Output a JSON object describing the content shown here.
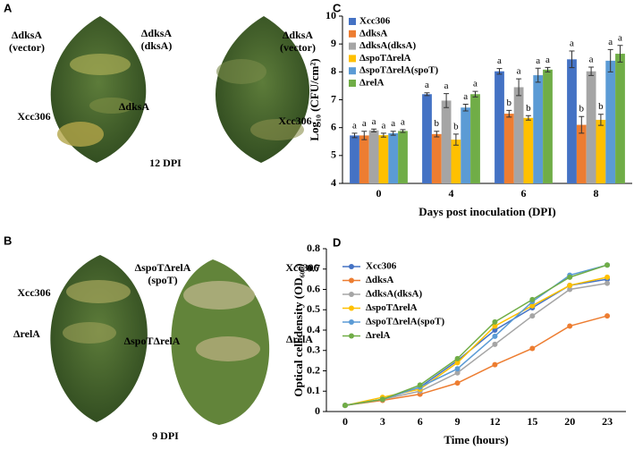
{
  "figure": {
    "panel_a": {
      "letter": "A",
      "caption": "12 DPI",
      "labels": [
        [
          "ΔdksA",
          "(vector)"
        ],
        [
          "ΔdksA",
          "(dksA)"
        ],
        [
          "ΔdksA"
        ],
        [
          "Xcc306"
        ],
        [
          "ΔdksA",
          "(vector)"
        ],
        [
          "Xcc306"
        ]
      ]
    },
    "panel_b": {
      "letter": "B",
      "caption": "9 DPI",
      "labels": [
        [
          "Xcc306"
        ],
        [
          "ΔspoTΔrelA",
          "(spoT)"
        ],
        [
          "Xcc306"
        ],
        [
          "ΔrelA"
        ],
        [
          "ΔspoTΔrelA"
        ],
        [
          "ΔrelA"
        ]
      ]
    },
    "panel_c": {
      "letter": "C"
    },
    "panel_d": {
      "letter": "D"
    }
  },
  "chart_data": [
    {
      "type": "bar",
      "x_label": "Days post inoculation (DPI)",
      "y_label": "Log₁₀ (CFU/cm²)",
      "categories": [
        "0",
        "4",
        "6",
        "8"
      ],
      "ylim": [
        4,
        10
      ],
      "yticks": [
        4,
        5,
        6,
        7,
        8,
        9,
        10
      ],
      "series": [
        {
          "name": "Xcc306",
          "color": "#4472c4",
          "values": [
            5.72,
            7.2,
            8.02,
            8.45
          ],
          "errors": [
            0.08,
            0.05,
            0.1,
            0.3
          ],
          "letters": [
            "a",
            "a",
            "a",
            "a"
          ]
        },
        {
          "name": "ΔdksA",
          "color": "#ed7d31",
          "values": [
            5.72,
            5.77,
            6.5,
            6.1
          ],
          "errors": [
            0.15,
            0.1,
            0.12,
            0.3
          ],
          "letters": [
            "a",
            "b",
            "b",
            "b"
          ]
        },
        {
          "name": "ΔdksA(dksA)",
          "color": "#a5a5a5",
          "values": [
            5.9,
            6.97,
            7.45,
            8.02
          ],
          "errors": [
            0.05,
            0.25,
            0.3,
            0.15
          ],
          "letters": [
            "a",
            "a",
            "a",
            "a"
          ]
        },
        {
          "name": "ΔspoTΔrelA",
          "color": "#ffc000",
          "values": [
            5.73,
            5.57,
            6.35,
            6.28
          ],
          "errors": [
            0.07,
            0.2,
            0.08,
            0.2
          ],
          "letters": [
            "a",
            "b",
            "b",
            "b"
          ]
        },
        {
          "name": "ΔspoTΔrelA(spoT)",
          "color": "#5b9bd5",
          "values": [
            5.8,
            6.72,
            7.88,
            8.4
          ],
          "errors": [
            0.07,
            0.12,
            0.25,
            0.4
          ],
          "letters": [
            "a",
            "a",
            "a",
            "a"
          ]
        },
        {
          "name": "ΔrelA",
          "color": "#70ad47",
          "values": [
            5.88,
            7.2,
            8.08,
            8.65
          ],
          "errors": [
            0.05,
            0.1,
            0.08,
            0.3
          ],
          "letters": [
            "a",
            "a",
            "a",
            "a"
          ]
        }
      ]
    },
    {
      "type": "line",
      "x_label": "Time  (hours)",
      "y_label": "Optical cell density (OD₆₀₀)",
      "categories": [
        "0",
        "3",
        "6",
        "9",
        "12",
        "15",
        "20",
        "23"
      ],
      "ylim": [
        0,
        0.8
      ],
      "yticks": [
        0,
        0.1,
        0.2,
        0.3,
        0.4,
        0.5,
        0.6,
        0.7,
        0.8
      ],
      "series": [
        {
          "name": "Xcc306",
          "color": "#4472c4",
          "values": [
            0.03,
            0.06,
            0.12,
            0.25,
            0.4,
            0.51,
            0.62,
            0.65
          ]
        },
        {
          "name": "ΔdksA",
          "color": "#ed7d31",
          "values": [
            0.03,
            0.055,
            0.085,
            0.14,
            0.23,
            0.31,
            0.42,
            0.47
          ]
        },
        {
          "name": "ΔdksA(dksA)",
          "color": "#a5a5a5",
          "values": [
            0.03,
            0.06,
            0.1,
            0.19,
            0.33,
            0.47,
            0.6,
            0.63
          ]
        },
        {
          "name": "ΔspoTΔrelA",
          "color": "#ffc000",
          "values": [
            0.03,
            0.07,
            0.11,
            0.24,
            0.42,
            0.52,
            0.62,
            0.66
          ]
        },
        {
          "name": "ΔspoTΔrelA(spoT)",
          "color": "#5b9bd5",
          "values": [
            0.03,
            0.06,
            0.12,
            0.21,
            0.37,
            0.54,
            0.67,
            0.72
          ]
        },
        {
          "name": "ΔrelA",
          "color": "#70ad47",
          "values": [
            0.03,
            0.06,
            0.13,
            0.26,
            0.44,
            0.55,
            0.66,
            0.72
          ]
        }
      ]
    }
  ]
}
